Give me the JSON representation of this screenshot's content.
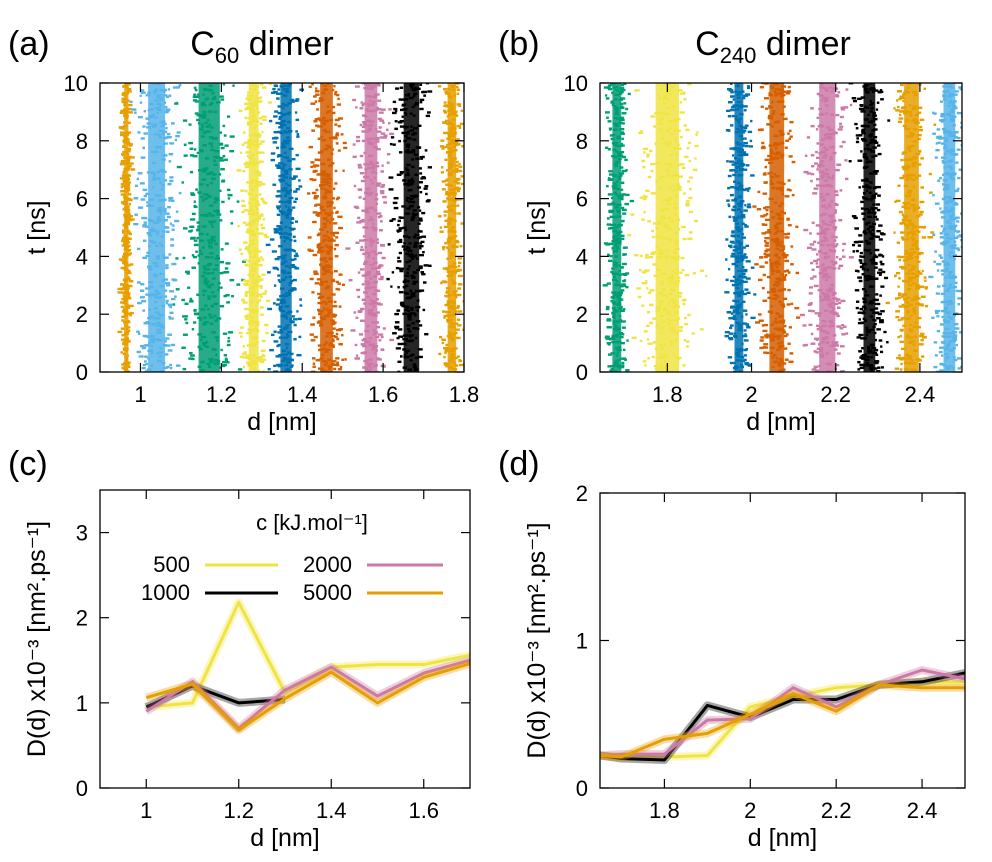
{
  "colors": {
    "yellow": "#f0e442",
    "black": "#000000",
    "pink": "#cc79a7",
    "orange": "#e69f00",
    "skyblue": "#56b4e9",
    "green": "#009e73",
    "blue": "#0072b2",
    "vermillion": "#d55e00"
  },
  "chart_data": [
    {
      "id": "a",
      "type": "scatter",
      "panel_label": "(a)",
      "title_main": "C",
      "title_sub": "60",
      "title_rest": " dimer",
      "xlabel": "d [nm]",
      "ylabel": "t [ns]",
      "xlim": [
        0.9,
        1.8
      ],
      "ylim": [
        0,
        10
      ],
      "xticks": [
        1,
        1.2,
        1.4,
        1.6,
        1.8
      ],
      "xtick_labels": [
        "1",
        "1.2",
        "1.4",
        "1.6",
        "1.8"
      ],
      "yticks": [
        0,
        2,
        4,
        6,
        8,
        10
      ],
      "ytick_labels": [
        "0",
        "2",
        "4",
        "6",
        "8",
        "10"
      ],
      "bands": [
        {
          "color": "orange",
          "center": 0.965,
          "width": 0.015
        },
        {
          "color": "skyblue",
          "center": 1.04,
          "width": 0.06
        },
        {
          "color": "green",
          "center": 1.17,
          "width": 0.075
        },
        {
          "color": "yellow",
          "center": 1.28,
          "width": 0.035
        },
        {
          "color": "blue",
          "center": 1.36,
          "width": 0.04
        },
        {
          "color": "vermillion",
          "center": 1.46,
          "width": 0.045
        },
        {
          "color": "pink",
          "center": 1.57,
          "width": 0.045
        },
        {
          "color": "black",
          "center": 1.67,
          "width": 0.055
        },
        {
          "color": "orange",
          "center": 1.77,
          "width": 0.03
        }
      ]
    },
    {
      "id": "b",
      "type": "scatter",
      "panel_label": "(b)",
      "title_main": "C",
      "title_sub": "240",
      "title_rest": " dimer",
      "xlabel": "d [nm]",
      "ylabel": "t [ns]",
      "xlim": [
        1.64,
        2.5
      ],
      "ylim": [
        0,
        10
      ],
      "xticks": [
        1.8,
        2,
        2.2,
        2.4
      ],
      "xtick_labels": [
        "1.8",
        "2",
        "2.2",
        "2.4"
      ],
      "yticks": [
        0,
        2,
        4,
        6,
        8,
        10
      ],
      "ytick_labels": [
        "0",
        "2",
        "4",
        "6",
        "8",
        "10"
      ],
      "bands": [
        {
          "color": "green",
          "center": 1.68,
          "width": 0.03
        },
        {
          "color": "yellow",
          "center": 1.8,
          "width": 0.08
        },
        {
          "color": "blue",
          "center": 1.97,
          "width": 0.03
        },
        {
          "color": "vermillion",
          "center": 2.06,
          "width": 0.05
        },
        {
          "color": "pink",
          "center": 2.18,
          "width": 0.055
        },
        {
          "color": "black",
          "center": 2.28,
          "width": 0.04
        },
        {
          "color": "orange",
          "center": 2.38,
          "width": 0.05
        },
        {
          "color": "skyblue",
          "center": 2.47,
          "width": 0.04
        }
      ]
    },
    {
      "id": "c",
      "type": "line",
      "panel_label": "(c)",
      "xlabel": "d [nm]",
      "ylabel": "D(d) x10⁻³ [nm².ps⁻¹]",
      "xlim": [
        0.9,
        1.7
      ],
      "ylim": [
        0,
        3.5
      ],
      "xticks": [
        1,
        1.2,
        1.4,
        1.6
      ],
      "xtick_labels": [
        "1",
        "1.2",
        "1.4",
        "1.6"
      ],
      "yticks": [
        0,
        1,
        2,
        3
      ],
      "ytick_labels": [
        "0",
        "1",
        "2",
        "3"
      ],
      "legend_title": "c [kJ.mol⁻¹]",
      "legend_position": "top-left",
      "series": [
        {
          "name": "500",
          "color": "yellow",
          "x": [
            1.0,
            1.1,
            1.2,
            1.3,
            1.4,
            1.5,
            1.6,
            1.7
          ],
          "values": [
            0.95,
            1.0,
            2.18,
            1.12,
            1.42,
            1.45,
            1.45,
            1.56
          ]
        },
        {
          "name": "1000",
          "color": "black",
          "x": [
            1.0,
            1.1,
            1.2,
            1.3
          ],
          "values": [
            0.95,
            1.2,
            1.0,
            1.04
          ]
        },
        {
          "name": "2000",
          "color": "pink",
          "x": [
            1.0,
            1.1,
            1.2,
            1.3,
            1.4,
            1.5,
            1.6,
            1.7
          ],
          "values": [
            0.9,
            1.25,
            0.7,
            1.15,
            1.42,
            1.08,
            1.35,
            1.5
          ]
        },
        {
          "name": "5000",
          "color": "orange",
          "x": [
            1.0,
            1.1,
            1.2,
            1.3,
            1.4,
            1.5,
            1.6,
            1.7
          ],
          "values": [
            1.06,
            1.22,
            0.68,
            1.05,
            1.36,
            1.0,
            1.3,
            1.46
          ]
        }
      ]
    },
    {
      "id": "d",
      "type": "line",
      "panel_label": "(d)",
      "xlabel": "d [nm]",
      "ylabel": "D(d) x10⁻³ [nm².ps⁻¹]",
      "xlim": [
        1.65,
        2.5
      ],
      "ylim": [
        0,
        2
      ],
      "xticks": [
        1.8,
        2,
        2.2,
        2.4
      ],
      "xtick_labels": [
        "1.8",
        "2",
        "2.2",
        "2.4"
      ],
      "yticks": [
        0,
        1,
        2
      ],
      "ytick_labels": [
        "0",
        "1",
        "2"
      ],
      "series": [
        {
          "name": "500",
          "color": "yellow",
          "x": [
            1.65,
            1.7,
            1.8,
            1.9,
            2.0,
            2.1,
            2.2,
            2.3,
            2.4,
            2.5
          ],
          "values": [
            0.22,
            0.21,
            0.21,
            0.22,
            0.55,
            0.62,
            0.68,
            0.7,
            0.72,
            0.72
          ]
        },
        {
          "name": "1000",
          "color": "black",
          "x": [
            1.65,
            1.7,
            1.8,
            1.9,
            2.0,
            2.1,
            2.2,
            2.3,
            2.4,
            2.5
          ],
          "values": [
            0.22,
            0.2,
            0.19,
            0.56,
            0.48,
            0.6,
            0.6,
            0.7,
            0.72,
            0.78
          ]
        },
        {
          "name": "2000",
          "color": "pink",
          "x": [
            1.65,
            1.7,
            1.8,
            1.9,
            2.0,
            2.1,
            2.2,
            2.3,
            2.4,
            2.5
          ],
          "values": [
            0.22,
            0.23,
            0.23,
            0.46,
            0.47,
            0.68,
            0.55,
            0.7,
            0.8,
            0.74
          ]
        },
        {
          "name": "5000",
          "color": "orange",
          "x": [
            1.65,
            1.7,
            1.8,
            1.9,
            2.0,
            2.1,
            2.2,
            2.3,
            2.4,
            2.5
          ],
          "values": [
            0.22,
            0.21,
            0.33,
            0.37,
            0.5,
            0.64,
            0.52,
            0.7,
            0.68,
            0.68
          ]
        }
      ]
    }
  ]
}
